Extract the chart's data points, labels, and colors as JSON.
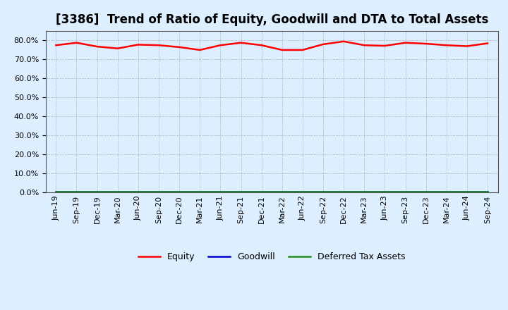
{
  "title": "[3386]  Trend of Ratio of Equity, Goodwill and DTA to Total Assets",
  "x_labels": [
    "Jun-19",
    "Sep-19",
    "Dec-19",
    "Mar-20",
    "Jun-20",
    "Sep-20",
    "Dec-20",
    "Mar-21",
    "Jun-21",
    "Sep-21",
    "Dec-21",
    "Mar-22",
    "Jun-22",
    "Sep-22",
    "Dec-22",
    "Mar-23",
    "Jun-23",
    "Sep-23",
    "Dec-23",
    "Mar-24",
    "Jun-24",
    "Sep-24"
  ],
  "equity": [
    77.5,
    78.8,
    76.8,
    75.8,
    77.8,
    77.5,
    76.5,
    75.0,
    77.5,
    78.8,
    77.5,
    75.0,
    75.0,
    78.0,
    79.5,
    77.5,
    77.2,
    78.8,
    78.3,
    77.5,
    77.0,
    78.5
  ],
  "goodwill": [
    0.3,
    0.3,
    0.3,
    0.3,
    0.3,
    0.3,
    0.3,
    0.3,
    0.3,
    0.3,
    0.3,
    0.3,
    0.3,
    0.3,
    0.3,
    0.3,
    0.3,
    0.3,
    0.3,
    0.3,
    0.3,
    0.3
  ],
  "dta": [
    0.2,
    0.2,
    0.2,
    0.2,
    0.2,
    0.2,
    0.2,
    0.2,
    0.2,
    0.2,
    0.2,
    0.2,
    0.2,
    0.2,
    0.2,
    0.2,
    0.2,
    0.2,
    0.2,
    0.2,
    0.2,
    0.2
  ],
  "equity_color": "#FF0000",
  "goodwill_color": "#0000CD",
  "dta_color": "#228B22",
  "ylim": [
    0.0,
    85.0
  ],
  "yticks": [
    0.0,
    10.0,
    20.0,
    30.0,
    40.0,
    50.0,
    60.0,
    70.0,
    80.0
  ],
  "background_color": "#DDEEFF",
  "plot_bg_color": "#DDEEFF",
  "grid_color": "#888888",
  "title_fontsize": 12,
  "axis_fontsize": 8,
  "legend_fontsize": 9
}
